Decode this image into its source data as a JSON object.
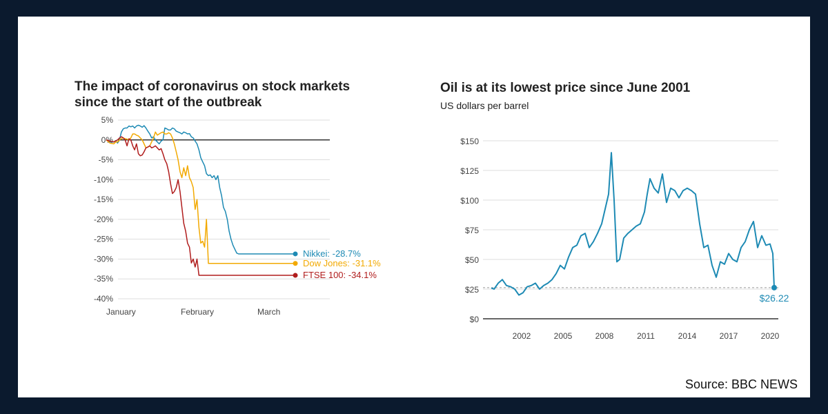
{
  "source": "Source: BBC NEWS",
  "chart_data": [
    {
      "type": "line",
      "title": "The impact of coronavirus on stock markets",
      "subtitle": "since the start of the outbreak",
      "ylim": [
        -40,
        5
      ],
      "yticks": [
        5,
        0,
        -5,
        -10,
        -15,
        -20,
        -25,
        -30,
        -35,
        -40
      ],
      "ytick_labels": [
        "5%",
        "0%",
        "-5%",
        "-10%",
        "-15%",
        "-20%",
        "-25%",
        "-30%",
        "-35%",
        "-40%"
      ],
      "x_labels": [
        "January",
        "February",
        "March"
      ],
      "grid": true,
      "colors": {
        "Nikkei": "#1d8ab4",
        "Dow Jones": "#f2a900",
        "FTSE 100": "#b01c1c"
      },
      "series": [
        {
          "name": "Nikkei",
          "end_label": "Nikkei: -28.7%",
          "x": [
            0,
            2,
            4,
            5,
            6,
            7,
            8,
            9,
            10,
            11,
            12,
            13,
            14,
            15,
            16,
            17,
            18,
            19,
            20,
            21,
            22,
            23,
            24,
            25,
            26,
            27,
            28,
            29,
            30,
            31,
            32,
            33,
            34,
            35,
            36,
            37,
            38,
            39,
            40,
            41,
            42,
            43,
            44,
            45,
            46,
            47,
            48,
            49,
            50,
            51,
            52,
            53,
            54,
            55,
            56,
            57,
            58,
            59,
            60,
            61,
            62,
            63,
            64,
            65,
            66,
            67,
            68,
            69,
            70,
            71,
            72,
            73,
            74,
            75,
            76,
            77,
            78,
            79,
            80,
            81,
            82,
            83,
            84,
            85,
            86,
            87,
            88,
            89,
            90,
            91,
            92,
            93,
            94,
            95,
            96,
            97,
            98,
            99,
            100
          ],
          "values": [
            0,
            -0.5,
            -0.5,
            -0.2,
            -0.8,
            0,
            2.0,
            2.8,
            3.0,
            3.0,
            3.5,
            3.3,
            3.5,
            3.0,
            3.5,
            3.7,
            3.5,
            3.2,
            3.6,
            3.0,
            2.2,
            1.5,
            0.5,
            0.8,
            0,
            -0.5,
            -1.0,
            -0.3,
            0,
            3.0,
            2.8,
            2.5,
            2.5,
            3.0,
            2.8,
            2.2,
            2.0,
            1.8,
            1.5,
            2.0,
            1.8,
            1.5,
            1.6,
            0.8,
            0.5,
            -0.3,
            -1.0,
            -2.5,
            -4.5,
            -5.5,
            -6.5,
            -8.5,
            -9.0,
            -8.8,
            -9.5,
            -9.0,
            -10.0,
            -9.0,
            -12.0,
            -14.0,
            -17.0,
            -18.0,
            -20.0,
            -23.0,
            -25.0,
            -26.5,
            -27.5,
            -28.5,
            -28.7,
            -28.7,
            -28.7,
            -28.7,
            -28.7,
            -28.7,
            -28.7,
            -28.7,
            -28.7,
            -28.7,
            -28.7,
            -28.7,
            -28.7,
            -28.7,
            -28.7,
            -28.7,
            -28.7,
            -28.7,
            -28.7,
            -28.7,
            -28.7,
            -28.7,
            -28.7,
            -28.7,
            -28.7,
            -28.7,
            -28.7,
            -28.7,
            -28.7,
            -28.7,
            -28.7
          ]
        },
        {
          "name": "Dow Jones",
          "end_label": "Dow Jones: -31.1%",
          "x": [
            0,
            2,
            4,
            5,
            6,
            7,
            8,
            9,
            10,
            11,
            12,
            13,
            14,
            15,
            16,
            17,
            18,
            19,
            20,
            21,
            22,
            23,
            24,
            25,
            26,
            27,
            28,
            29,
            30,
            31,
            32,
            33,
            34,
            35,
            36,
            37,
            38,
            39,
            40,
            41,
            42,
            43,
            44,
            45,
            46,
            47,
            48,
            49,
            50,
            51,
            52,
            53,
            54,
            55,
            56,
            57,
            58,
            59,
            60,
            61,
            62,
            63,
            64,
            65,
            66,
            67,
            68,
            69,
            70,
            71,
            72,
            73,
            74,
            75,
            76,
            77,
            78,
            79,
            80,
            81,
            82,
            83,
            84,
            85,
            86,
            87,
            88,
            89,
            90,
            91,
            92,
            93,
            94,
            95,
            96,
            97,
            98,
            99,
            100
          ],
          "values": [
            0,
            -0.8,
            -1.0,
            -0.5,
            -0.5,
            0,
            0.3,
            0.5,
            0.3,
            0.2,
            0,
            0.5,
            1.5,
            1.5,
            1.2,
            1.0,
            0.5,
            0,
            -1.0,
            -2.0,
            -1.8,
            -1.5,
            -0.5,
            0.5,
            2.0,
            1.2,
            1.5,
            1.8,
            2.0,
            1.5,
            1.5,
            1.8,
            1.5,
            0.5,
            -1.0,
            -3.0,
            -5.0,
            -8.0,
            -9.5,
            -7.0,
            -9.0,
            -6.5,
            -9.5,
            -10.5,
            -12.0,
            -17.5,
            -15.0,
            -22.0,
            -26.0,
            -25.5,
            -27.0,
            -20.0,
            -31.1,
            -31.1,
            -31.1,
            -31.1,
            -31.1,
            -31.1,
            -31.1,
            -31.1,
            -31.1,
            -31.1,
            -31.1,
            -31.1,
            -31.1,
            -31.1,
            -31.1,
            -31.1,
            -31.1,
            -31.1,
            -31.1,
            -31.1,
            -31.1,
            -31.1,
            -31.1,
            -31.1,
            -31.1,
            -31.1,
            -31.1,
            -31.1,
            -31.1,
            -31.1,
            -31.1,
            -31.1,
            -31.1,
            -31.1,
            -31.1,
            -31.1,
            -31.1,
            -31.1,
            -31.1,
            -31.1,
            -31.1,
            -31.1,
            -31.1,
            -31.1,
            -31.1,
            -31.1,
            -31.1
          ]
        },
        {
          "name": "FTSE 100",
          "end_label": "FTSE 100: -34.1%",
          "x": [
            0,
            2,
            4,
            5,
            6,
            7,
            8,
            9,
            10,
            11,
            12,
            13,
            14,
            15,
            16,
            17,
            18,
            19,
            20,
            21,
            22,
            23,
            24,
            25,
            26,
            27,
            28,
            29,
            30,
            31,
            32,
            33,
            34,
            35,
            36,
            37,
            38,
            39,
            40,
            41,
            42,
            43,
            44,
            45,
            46,
            47,
            48,
            49,
            50,
            51,
            52,
            53,
            54,
            55,
            56,
            57,
            58,
            59,
            60,
            61,
            62,
            63,
            64,
            65,
            66,
            67,
            68,
            69,
            70,
            71,
            72,
            73,
            74,
            75,
            76,
            77,
            78,
            79,
            80,
            81,
            82,
            83,
            84,
            85,
            86,
            87,
            88,
            89,
            90,
            91,
            92,
            93,
            94,
            95,
            96,
            97,
            98,
            99,
            100
          ],
          "values": [
            0,
            -0.3,
            -0.5,
            -0.2,
            0,
            0.5,
            0.8,
            0.5,
            0,
            -1.5,
            0.3,
            0,
            -1.5,
            -2.5,
            -1.0,
            -3.5,
            -4.0,
            -3.8,
            -3.0,
            -2.0,
            -1.8,
            -1.5,
            -2.0,
            -1.8,
            -1.5,
            -2.0,
            -2.5,
            -2.2,
            -3.5,
            -5.0,
            -6.0,
            -8.0,
            -11.0,
            -13.5,
            -13.0,
            -12.0,
            -10.0,
            -13.0,
            -17.0,
            -21.0,
            -23.0,
            -26.0,
            -27.0,
            -31.0,
            -30.0,
            -32.0,
            -30.0,
            -34.1,
            -34.1,
            -34.1,
            -34.1,
            -34.1,
            -34.1,
            -34.1,
            -34.1,
            -34.1,
            -34.1,
            -34.1,
            -34.1,
            -34.1,
            -34.1,
            -34.1,
            -34.1,
            -34.1,
            -34.1,
            -34.1,
            -34.1,
            -34.1,
            -34.1,
            -34.1,
            -34.1,
            -34.1,
            -34.1,
            -34.1,
            -34.1,
            -34.1,
            -34.1,
            -34.1,
            -34.1,
            -34.1,
            -34.1,
            -34.1,
            -34.1,
            -34.1,
            -34.1,
            -34.1,
            -34.1,
            -34.1,
            -34.1,
            -34.1,
            -34.1,
            -34.1,
            -34.1,
            -34.1,
            -34.1,
            -34.1,
            -34.1,
            -34.1,
            -34.1
          ]
        }
      ]
    },
    {
      "type": "line",
      "title": "Oil is at its lowest price since June 2001",
      "ylabel": "US dollars per barrel",
      "ylim": [
        0,
        150
      ],
      "yticks": [
        0,
        25,
        50,
        75,
        100,
        125,
        150
      ],
      "ytick_labels": [
        "$0",
        "$25",
        "$50",
        "$75",
        "$100",
        "$125",
        "$150"
      ],
      "xlim": [
        1999.2,
        2020.6
      ],
      "xticks": [
        2002,
        2005,
        2008,
        2011,
        2014,
        2017,
        2020
      ],
      "grid": true,
      "color": "#1d8ab4",
      "reference_value": 26.22,
      "end_label": "$26.22",
      "series": [
        {
          "x": [
            1999.8,
            2000.0,
            2000.3,
            2000.6,
            2000.9,
            2001.2,
            2001.5,
            2001.8,
            2002.1,
            2002.4,
            2002.7,
            2003.0,
            2003.3,
            2003.6,
            2003.9,
            2004.2,
            2004.5,
            2004.8,
            2005.1,
            2005.4,
            2005.7,
            2006.0,
            2006.3,
            2006.6,
            2006.9,
            2007.2,
            2007.5,
            2007.8,
            2008.1,
            2008.3,
            2008.5,
            2008.7,
            2008.9,
            2009.1,
            2009.4,
            2009.7,
            2010.0,
            2010.3,
            2010.6,
            2010.9,
            2011.1,
            2011.3,
            2011.6,
            2011.9,
            2012.2,
            2012.5,
            2012.8,
            2013.1,
            2013.4,
            2013.7,
            2014.0,
            2014.3,
            2014.6,
            2014.9,
            2015.2,
            2015.5,
            2015.8,
            2016.1,
            2016.4,
            2016.7,
            2017.0,
            2017.3,
            2017.6,
            2017.9,
            2018.2,
            2018.5,
            2018.8,
            2019.1,
            2019.4,
            2019.7,
            2020.0,
            2020.2,
            2020.3
          ],
          "values": [
            26,
            25,
            30,
            33,
            28,
            27,
            25,
            20,
            22,
            27,
            28,
            30,
            25,
            28,
            30,
            33,
            38,
            45,
            42,
            52,
            60,
            62,
            70,
            72,
            60,
            65,
            72,
            80,
            95,
            105,
            140,
            100,
            48,
            50,
            68,
            72,
            75,
            78,
            80,
            90,
            105,
            118,
            110,
            106,
            122,
            98,
            110,
            108,
            102,
            108,
            110,
            108,
            105,
            80,
            60,
            62,
            45,
            35,
            48,
            46,
            55,
            50,
            48,
            60,
            65,
            75,
            82,
            60,
            70,
            62,
            63,
            55,
            26.22
          ]
        }
      ]
    }
  ]
}
